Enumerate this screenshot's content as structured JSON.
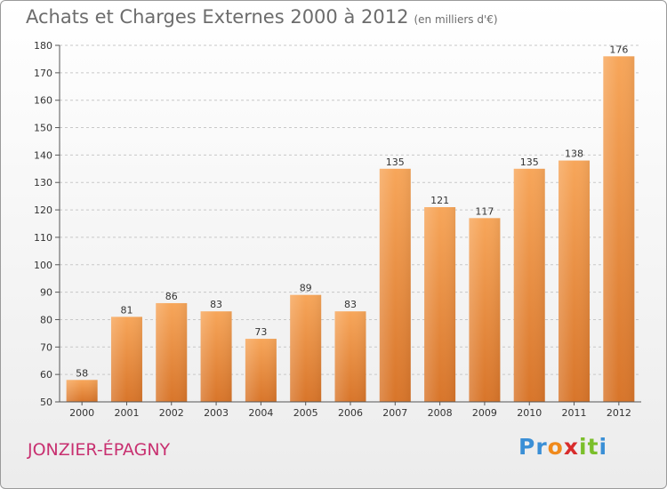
{
  "title": "Achats et Charges Externes 2000 à 2012",
  "subtitle": "(en milliers d'€)",
  "location": "JONZIER-ÉPAGNY",
  "logo": {
    "letters": [
      "P",
      "r",
      "o",
      "x",
      "i",
      "t",
      "i"
    ],
    "colors": [
      "#3a8fd6",
      "#3a8fd6",
      "#f08a1c",
      "#d82c2c",
      "#7bbf2a",
      "#7bbf2a",
      "#3a8fd6"
    ]
  },
  "colors": {
    "bar_top": "#f7a65a",
    "bar_bottom": "#d8752a",
    "location": "#c83070",
    "axis": "#555555",
    "grid": "#c8c8c8"
  },
  "chart_data": {
    "type": "bar",
    "categories": [
      "2000",
      "2001",
      "2002",
      "2003",
      "2004",
      "2005",
      "2006",
      "2007",
      "2008",
      "2009",
      "2010",
      "2011",
      "2012"
    ],
    "values": [
      58,
      81,
      86,
      83,
      73,
      89,
      83,
      135,
      121,
      117,
      135,
      138,
      176
    ],
    "ylim": [
      50,
      180
    ],
    "yticks": [
      50,
      60,
      70,
      80,
      90,
      100,
      110,
      120,
      130,
      140,
      150,
      160,
      170,
      180
    ],
    "grid": true,
    "data_labels": true
  }
}
